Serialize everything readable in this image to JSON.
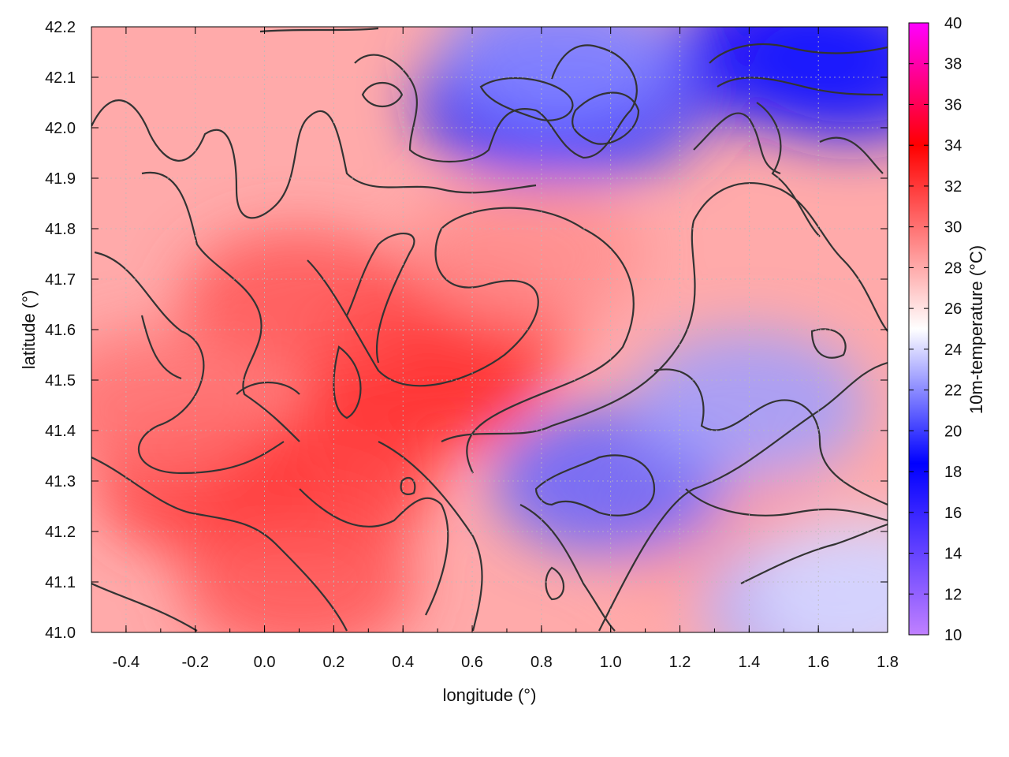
{
  "chart_data": {
    "type": "heatmap",
    "title": "",
    "xlabel": "longitude (°)",
    "ylabel": "latitude (°)",
    "colorbar_label": "10m-temperature (°C)",
    "xlim": [
      -0.5,
      1.8
    ],
    "ylim": [
      41.0,
      42.2
    ],
    "clim": [
      10,
      40
    ],
    "x_ticks": [
      "-0.4",
      "-0.2",
      "0.0",
      "0.2",
      "0.4",
      "0.6",
      "0.8",
      "1.0",
      "1.2",
      "1.4",
      "1.6",
      "1.8"
    ],
    "y_ticks": [
      "41.0",
      "41.1",
      "41.2",
      "41.3",
      "41.4",
      "41.5",
      "41.6",
      "41.7",
      "41.8",
      "41.9",
      "42.0",
      "42.1",
      "42.2"
    ],
    "colorbar_ticks": [
      "10",
      "12",
      "14",
      "16",
      "18",
      "20",
      "22",
      "24",
      "26",
      "28",
      "30",
      "32",
      "34",
      "36",
      "38",
      "40"
    ],
    "grid": true,
    "colormap": [
      "#c080ff",
      "#0000ff",
      "#ffffff",
      "#ff0000",
      "#ff00ff"
    ],
    "contour_color": "#333333",
    "hot_spots": [
      {
        "lon": 0.45,
        "lat": 41.5,
        "value": 33
      },
      {
        "lon": 0.15,
        "lat": 41.3,
        "value": 32
      },
      {
        "lon": -0.15,
        "lat": 41.3,
        "value": 32
      },
      {
        "lon": 0.55,
        "lat": 41.6,
        "value": 32
      },
      {
        "lon": 0.1,
        "lat": 41.65,
        "value": 31
      },
      {
        "lon": -0.3,
        "lat": 41.45,
        "value": 30
      },
      {
        "lon": 0.1,
        "lat": 41.1,
        "value": 31
      },
      {
        "lon": 1.3,
        "lat": 41.2,
        "value": 28.5
      },
      {
        "lon": 0.75,
        "lat": 41.75,
        "value": 29
      }
    ],
    "cool_spots": [
      {
        "lon": 1.5,
        "lat": 42.15,
        "value": 18
      },
      {
        "lon": 1.7,
        "lat": 42.12,
        "value": 19
      },
      {
        "lon": 0.78,
        "lat": 42.05,
        "value": 19
      },
      {
        "lon": 0.95,
        "lat": 42.05,
        "value": 20
      },
      {
        "lon": 0.85,
        "lat": 42.15,
        "value": 22
      },
      {
        "lon": 1.0,
        "lat": 41.3,
        "value": 21
      },
      {
        "lon": 1.4,
        "lat": 41.45,
        "value": 22.5
      },
      {
        "lon": 1.6,
        "lat": 41.05,
        "value": 23
      },
      {
        "lon": 1.75,
        "lat": 41.08,
        "value": 24
      }
    ]
  }
}
